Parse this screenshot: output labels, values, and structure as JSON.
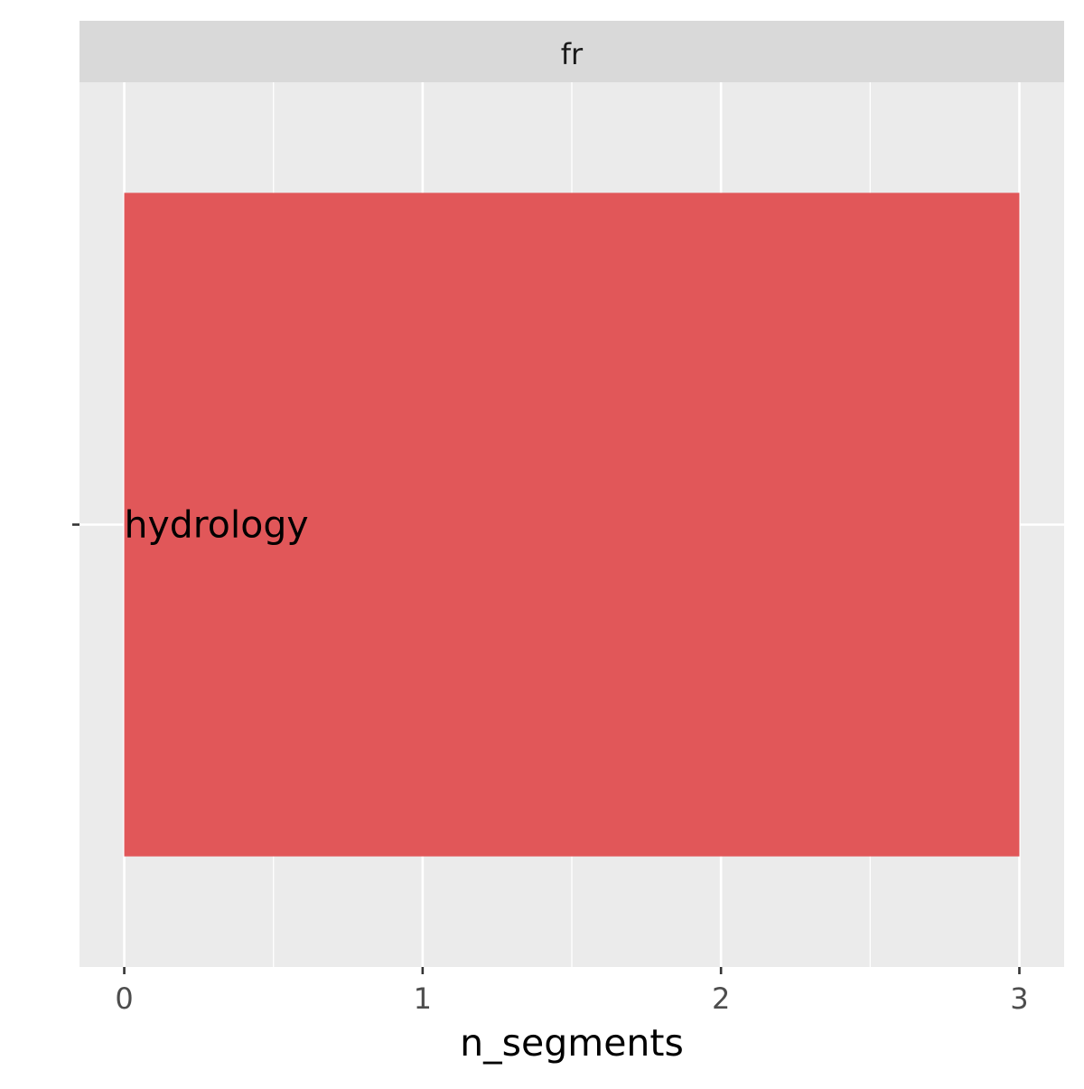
{
  "chart_data": {
    "type": "bar",
    "orientation": "horizontal",
    "facet_label": "fr",
    "categories": [
      "hydrology"
    ],
    "values": [
      3
    ],
    "xlabel": "n_segments",
    "ylabel": "",
    "xlim": [
      -0.15,
      3.15
    ],
    "x_ticks": [
      0,
      1,
      2,
      3
    ],
    "y_tick_labels": [
      ""
    ],
    "grid": true,
    "legend": "none",
    "colors": {
      "bar": "#E15759",
      "panel_background": "#EBEBEB",
      "strip_background": "#D9D9D9",
      "gridline": "#FFFFFF",
      "text": "#1A1A1A",
      "tick_text": "#4D4D4D"
    }
  }
}
